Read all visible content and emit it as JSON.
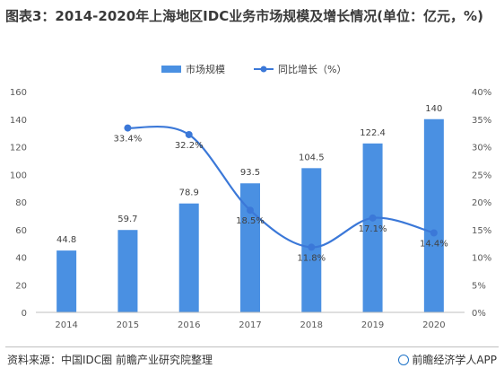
{
  "title": "图表3：2014-2020年上海地区IDC业务市场规模及增长情况(单位：亿元，%)",
  "footer": {
    "source": "资料来源：中国IDC圈 前瞻产业研究院整理",
    "brand": "前瞻经济学人APP"
  },
  "colors": {
    "bar": "#4a90e2",
    "line": "#3b78d8",
    "axis": "#bfbfbf",
    "text": "#595959"
  },
  "chart_data": {
    "type": "bar",
    "categories": [
      "2014",
      "2015",
      "2016",
      "2017",
      "2018",
      "2019",
      "2020"
    ],
    "series": [
      {
        "name": "市场规模",
        "type": "bar",
        "axis": "left",
        "values": [
          44.8,
          59.7,
          78.9,
          93.5,
          104.5,
          122.4,
          140
        ],
        "labels": [
          "44.8",
          "59.7",
          "78.9",
          "93.5",
          "104.5",
          "122.4",
          "140"
        ]
      },
      {
        "name": "同比增长（%）",
        "type": "line",
        "axis": "right",
        "smooth": true,
        "values": [
          null,
          33.4,
          32.2,
          18.5,
          11.8,
          17.1,
          14.4
        ],
        "labels": [
          "",
          "33.4%",
          "32.2%",
          "18.5%",
          "11.8%",
          "17.1%",
          "14.4%"
        ]
      }
    ],
    "y_left": {
      "min": 0,
      "max": 160,
      "ticks": [
        "0",
        "20",
        "40",
        "60",
        "80",
        "100",
        "120",
        "140",
        "160"
      ]
    },
    "y_right": {
      "min": 0,
      "max": 40,
      "ticks": [
        "0%",
        "5%",
        "10%",
        "15%",
        "20%",
        "25%",
        "30%",
        "35%",
        "40%"
      ]
    },
    "legend_position": "top-center",
    "grid": false
  }
}
